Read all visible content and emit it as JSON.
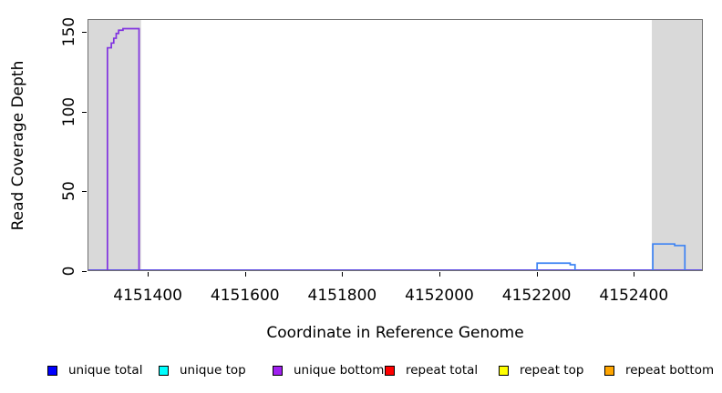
{
  "chart_data": {
    "type": "area",
    "title": "",
    "xlabel": "Coordinate in Reference Genome",
    "ylabel": "Read Coverage Depth",
    "xlim": [
      4151276,
      4152542
    ],
    "ylim": [
      0,
      158
    ],
    "x_ticks": [
      4151400,
      4151600,
      4151800,
      4152000,
      4152200,
      4152400
    ],
    "y_ticks": [
      0,
      50,
      100,
      150
    ],
    "grid": false,
    "legend_position": "bottom",
    "colors": {
      "plot_border": "#6e6e6e",
      "highlight_band": "#d9d9d9",
      "baseline_top": "#6858e6",
      "baseline_bottom": "#cdb9f2"
    },
    "shaded_regions": [
      {
        "name": "left-highlight-band",
        "x0": 4151276,
        "x1": 4151386,
        "color": "#d9d9d9"
      },
      {
        "name": "right-highlight-band",
        "x0": 4152437,
        "x1": 4152542,
        "color": "#d9d9d9"
      }
    ],
    "series": [
      {
        "name": "unique bottom (tall coverage peak, overlapping unique total)",
        "color": "#8032e0",
        "segments": [
          [
            4151317,
            4151325,
            140
          ],
          [
            4151325,
            4151330,
            143
          ],
          [
            4151330,
            4151335,
            146
          ],
          [
            4151335,
            4151340,
            149
          ],
          [
            4151340,
            4151349,
            151
          ],
          [
            4151349,
            4151382,
            152
          ]
        ]
      },
      {
        "name": "unique total (small coverage bumps)",
        "color": "#3b82f4",
        "segments": [
          [
            4152201,
            4152269,
            5
          ],
          [
            4152269,
            4152279,
            4
          ],
          [
            4152439,
            4152484,
            17
          ],
          [
            4152484,
            4152505,
            16
          ]
        ]
      }
    ],
    "baseline_accents": [
      {
        "name": "green accent under left peak",
        "color": "#7fd87f",
        "x0": 4151317,
        "x1": 4151386
      },
      {
        "name": "red accent under middle bump",
        "color": "#f07878",
        "x0": 4152201,
        "x1": 4152280
      },
      {
        "name": "red accent under right bump",
        "color": "#f07878",
        "x0": 4152439,
        "x1": 4152507
      }
    ],
    "legend": [
      {
        "label": "unique total",
        "color": "#0000ff"
      },
      {
        "label": "unique top",
        "color": "#00ffff"
      },
      {
        "label": "unique bottom",
        "color": "#a020f0"
      },
      {
        "label": "repeat total",
        "color": "#ff0000"
      },
      {
        "label": "repeat top",
        "color": "#ffff00"
      },
      {
        "label": "repeat bottom",
        "color": "#ffa500"
      }
    ]
  }
}
